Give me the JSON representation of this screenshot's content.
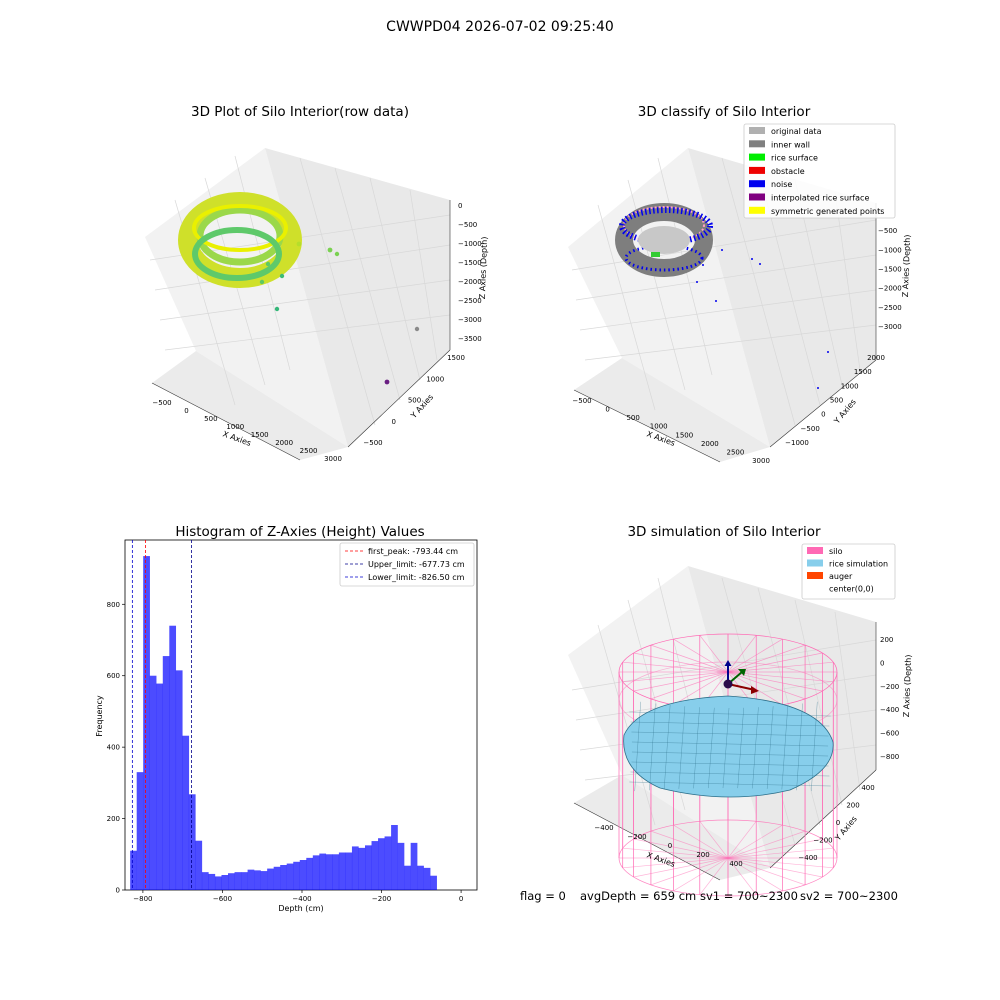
{
  "suptitle": "CWWPD04 2026-07-02 09:25:40",
  "panels": {
    "raw": {
      "title": "3D Plot of Silo Interior(row data)",
      "xlabel": "X Axies",
      "ylabel": "Y Axies",
      "zlabel": "Z Axies (Depth)",
      "xticks": [
        "−500",
        "0",
        "500",
        "1000",
        "1500",
        "2000",
        "2500",
        "3000"
      ],
      "yticks": [
        "−500",
        "0",
        "500",
        "1000",
        "1500"
      ],
      "zticks": [
        "0",
        "−500",
        "−1000",
        "−1500",
        "−2000",
        "−2500",
        "−3000",
        "−3500"
      ]
    },
    "classify": {
      "title": "3D classify of Silo Interior",
      "xlabel": "X Axies",
      "ylabel": "Y Axies",
      "zlabel": "Z Axies (Depth)",
      "xticks": [
        "−500",
        "0",
        "500",
        "1000",
        "1500",
        "2000",
        "2500",
        "3000"
      ],
      "yticks": [
        "−1000",
        "−500",
        "0",
        "500",
        "1000",
        "1500",
        "2000"
      ],
      "zticks": [
        "0",
        "−500",
        "−1000",
        "−1500",
        "−2000",
        "−2500",
        "−3000"
      ],
      "legend": [
        {
          "label": "original data",
          "color": "#b0b0b0"
        },
        {
          "label": "inner wall",
          "color": "#808080"
        },
        {
          "label": "rice surface",
          "color": "#00ee00"
        },
        {
          "label": "obstacle",
          "color": "#ee0000"
        },
        {
          "label": "noise",
          "color": "#0000ee"
        },
        {
          "label": "interpolated rice surface",
          "color": "#800080"
        },
        {
          "label": "symmetric generated points",
          "color": "#ffff00"
        }
      ]
    },
    "simulation": {
      "title": "3D simulation of Silo Interior",
      "xlabel": "X Axies",
      "ylabel": "Y Axies",
      "zlabel": "Z Axies (Depth)",
      "xticks": [
        "−400",
        "−200",
        "0",
        "200",
        "400"
      ],
      "yticks": [
        "−400",
        "−200",
        "0",
        "200",
        "400"
      ],
      "zticks": [
        "200",
        "0",
        "−200",
        "−400",
        "−600",
        "−800"
      ],
      "legend": [
        {
          "label": "silo",
          "color": "#ff69b4"
        },
        {
          "label": "rice simulation",
          "color": "#87ceeb"
        },
        {
          "label": "auger",
          "color": "#ff4500"
        },
        {
          "label": "center(0,0)",
          "color": "#ffffff"
        }
      ]
    }
  },
  "chart_data": {
    "type": "bar",
    "title": "Histogram of Z-Axies (Height) Values",
    "xlabel": "Depth (cm)",
    "ylabel": "Frequency",
    "xlim": [
      -845,
      40
    ],
    "ylim": [
      0,
      980
    ],
    "xticks": [
      -800,
      -600,
      -400,
      -200,
      0
    ],
    "yticks": [
      0,
      200,
      400,
      600,
      800
    ],
    "bin_start": -832,
    "bin_width": 16.4,
    "values": [
      110,
      330,
      935,
      600,
      578,
      655,
      740,
      615,
      432,
      268,
      138,
      50,
      45,
      38,
      42,
      47,
      50,
      50,
      57,
      55,
      53,
      60,
      65,
      70,
      74,
      79,
      84,
      90,
      97,
      102,
      100,
      100,
      105,
      105,
      122,
      118,
      125,
      137,
      145,
      150,
      182,
      132,
      68,
      132,
      68,
      62,
      40
    ],
    "bar_color": "#0000ff",
    "lines": [
      {
        "label": "first_peak: -793.44 cm",
        "x": -793.44,
        "color": "#ff0000"
      },
      {
        "label": "Upper_limit: -677.73 cm",
        "x": -677.73,
        "color": "#00008b"
      },
      {
        "label": "Lower_limit: -826.50 cm",
        "x": -826.5,
        "color": "#0000cd"
      }
    ]
  },
  "footer": {
    "flag": "flag = 0",
    "avgdepth": "avgDepth = 659 cm",
    "sv1": "sv1 = 700~2300",
    "sv2": "sv2 = 700~2300"
  }
}
